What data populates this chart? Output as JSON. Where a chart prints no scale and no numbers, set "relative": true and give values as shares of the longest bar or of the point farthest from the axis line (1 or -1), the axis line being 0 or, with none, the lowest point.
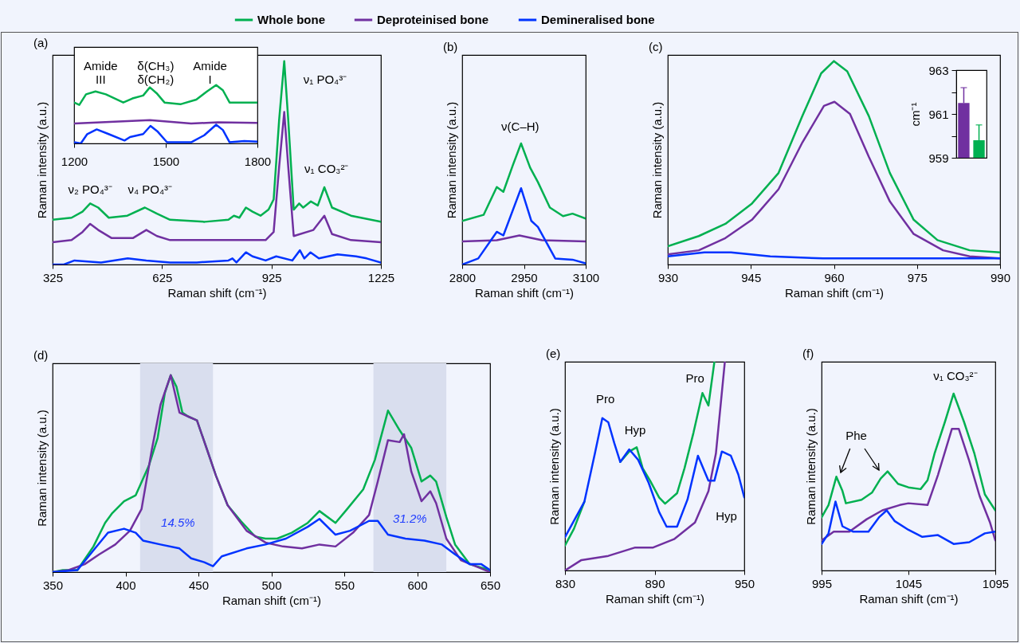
{
  "chart_data": [
    {
      "type": "line",
      "title": "(a)",
      "xlabel": "Raman shift (cm⁻¹)",
      "ylabel": "Raman intensity (a.u.)",
      "relative": true,
      "xlim": [
        325,
        1225
      ],
      "xticks": [
        325,
        625,
        925,
        1225
      ],
      "legend": "top",
      "series": [
        {
          "name": "Whole bone",
          "color": "#00b050",
          "x": [
            325,
            377,
            407,
            428,
            450,
            479,
            530,
            578,
            611,
            647,
            742,
            807,
            822,
            837,
            855,
            873,
            895,
            917,
            931,
            946,
            960,
            971,
            986,
            1001,
            1012,
            1033,
            1052,
            1070,
            1091,
            1143,
            1225
          ],
          "values": [
            0.22,
            0.23,
            0.26,
            0.3,
            0.28,
            0.23,
            0.24,
            0.28,
            0.25,
            0.22,
            0.21,
            0.22,
            0.24,
            0.23,
            0.28,
            0.26,
            0.24,
            0.27,
            0.32,
            0.71,
            1,
            0.71,
            0.27,
            0.3,
            0.28,
            0.31,
            0.29,
            0.38,
            0.28,
            0.24,
            0.21
          ]
        },
        {
          "name": "Deproteinised bone",
          "color": "#7030a0",
          "x": [
            325,
            377,
            407,
            428,
            450,
            487,
            545,
            582,
            611,
            647,
            778,
            909,
            931,
            946,
            960,
            971,
            986,
            1040,
            1070,
            1091,
            1143,
            1225
          ],
          "values": [
            0.11,
            0.12,
            0.16,
            0.2,
            0.17,
            0.13,
            0.13,
            0.17,
            0.14,
            0.12,
            0.12,
            0.12,
            0.16,
            0.48,
            0.75,
            0.48,
            0.14,
            0.17,
            0.24,
            0.15,
            0.12,
            0.11
          ]
        },
        {
          "name": "Demineralised bone",
          "color": "#0033ff",
          "x": [
            325,
            356,
            385,
            458,
            531,
            582,
            647,
            720,
            807,
            818,
            829,
            855,
            873,
            909,
            938,
            982,
            1003,
            1015,
            1032,
            1055,
            1106,
            1157,
            1186,
            1225
          ],
          "values": [
            0,
            0,
            0.02,
            0.01,
            0.03,
            0.02,
            0.01,
            0.01,
            0.02,
            0.03,
            0.01,
            0.06,
            0.04,
            0.02,
            0.04,
            0.02,
            0.07,
            0.03,
            0.06,
            0.03,
            0.05,
            0.04,
            0.03,
            0.01
          ]
        }
      ],
      "annotations": [
        "ν₂ PO₄³⁻",
        "ν₄ PO₄³⁻",
        "ν₁ PO₄³⁻",
        "ν₁ CO₃²⁻"
      ]
    },
    {
      "type": "line",
      "relative": true,
      "xlim": [
        1200,
        1800
      ],
      "xticks": [
        1200,
        1500,
        1800
      ],
      "series": [
        {
          "color": "#00b050",
          "x": [
            1200,
            1217,
            1239,
            1270,
            1304,
            1361,
            1391,
            1426,
            1448,
            1470,
            1496,
            1548,
            1600,
            1635,
            1665,
            1687,
            1709,
            1800
          ],
          "values": [
            0.7,
            0.66,
            0.84,
            0.89,
            0.84,
            0.7,
            0.77,
            0.82,
            0.96,
            0.86,
            0.7,
            0.67,
            0.75,
            0.89,
            1,
            0.91,
            0.7,
            0.7
          ]
        },
        {
          "color": "#7030a0",
          "x": [
            1200,
            1448,
            1583,
            1670,
            1800
          ],
          "values": [
            0.34,
            0.4,
            0.34,
            0.36,
            0.35
          ]
        },
        {
          "color": "#0033ff",
          "x": [
            1200,
            1222,
            1243,
            1274,
            1313,
            1365,
            1383,
            1426,
            1450,
            1474,
            1504,
            1583,
            1626,
            1665,
            1687,
            1709,
            1757,
            1800
          ],
          "values": [
            0.02,
            0,
            0.16,
            0.24,
            0.16,
            0.05,
            0.11,
            0.16,
            0.3,
            0.2,
            0.02,
            0.02,
            0.14,
            0.32,
            0.23,
            0.02,
            0.04,
            0.03
          ]
        }
      ],
      "annotations": [
        "Amide III",
        "δ(CH₃) δ(CH₂)",
        "Amide I"
      ]
    },
    {
      "type": "line",
      "title": "(b)",
      "xlabel": "Raman shift (cm⁻¹)",
      "ylabel": "Raman intensity (a.u.)",
      "relative": true,
      "xlim": [
        2800,
        3100
      ],
      "xticks": [
        2800,
        2950,
        3100
      ],
      "series": [
        {
          "color": "#00b050",
          "x": [
            2800,
            2852,
            2884,
            2900,
            2923,
            2943,
            2965,
            2984,
            3013,
            3045,
            3068,
            3100
          ],
          "values": [
            0.36,
            0.41,
            0.64,
            0.6,
            0.82,
            1,
            0.8,
            0.68,
            0.47,
            0.4,
            0.42,
            0.38
          ]
        },
        {
          "color": "#7030a0",
          "x": [
            2800,
            2884,
            2939,
            2994,
            3100
          ],
          "values": [
            0.19,
            0.2,
            0.24,
            0.2,
            0.19
          ]
        },
        {
          "color": "#0033ff",
          "x": [
            2800,
            2839,
            2884,
            2900,
            2943,
            2968,
            2984,
            3026,
            3068,
            3100
          ],
          "values": [
            0,
            0.05,
            0.27,
            0.24,
            0.63,
            0.36,
            0.31,
            0.05,
            0.04,
            0.01
          ]
        }
      ],
      "annotations": [
        "ν(C–H)"
      ]
    },
    {
      "type": "line",
      "title": "(c)",
      "xlabel": "Raman shift (cm⁻¹)",
      "ylabel": "Raman intensity (a.u.)",
      "relative": true,
      "xlim": [
        930,
        990
      ],
      "xticks": [
        930,
        945,
        960,
        975,
        990
      ],
      "series": [
        {
          "color": "#00b050",
          "x": [
            930,
            935.6,
            940.4,
            945.2,
            950,
            954.3,
            957.7,
            960,
            962.4,
            966.3,
            970.1,
            974.4,
            978.7,
            984.5,
            990
          ],
          "values": [
            0.09,
            0.14,
            0.2,
            0.3,
            0.45,
            0.73,
            0.94,
            1,
            0.95,
            0.73,
            0.45,
            0.22,
            0.12,
            0.07,
            0.06
          ]
        },
        {
          "color": "#7030a0",
          "x": [
            930,
            935.6,
            940.4,
            945.2,
            950,
            954.3,
            958.2,
            960.1,
            962.9,
            966.3,
            970.1,
            974.4,
            979.7,
            984.5,
            990
          ],
          "values": [
            0.05,
            0.07,
            0.13,
            0.22,
            0.37,
            0.6,
            0.78,
            0.8,
            0.74,
            0.53,
            0.31,
            0.15,
            0.07,
            0.04,
            0.03
          ]
        },
        {
          "color": "#0033ff",
          "x": [
            930,
            936.6,
            941.4,
            948.5,
            958,
            972.5,
            990
          ],
          "values": [
            0.04,
            0.06,
            0.06,
            0.04,
            0.03,
            0.03,
            0.03
          ]
        }
      ]
    },
    {
      "type": "bar",
      "ylabel": "cm⁻¹",
      "categories": [
        null,
        null
      ],
      "values": [
        961.5,
        959.8
      ],
      "colors": [
        "#7030a0",
        "#00b050"
      ],
      "errors": [
        [
          961.5,
          962.2
        ],
        [
          959.8,
          960.5
        ]
      ],
      "ylim": [
        959,
        963
      ],
      "yticks": [
        959,
        {
          "value": 960,
          "label": null
        },
        961,
        {
          "value": 962,
          "label": null
        },
        963
      ]
    },
    {
      "type": "line",
      "title": "(d)",
      "xlabel": "Raman shift (cm⁻¹)",
      "ylabel": "Raman intensity (a.u.)",
      "relative": true,
      "xlim": [
        350,
        650
      ],
      "xticks": [
        350,
        400,
        450,
        500,
        550,
        600,
        650
      ],
      "bands": [
        {
          "axis": "x",
          "from": 410,
          "to": 460,
          "color": "#d9deee"
        },
        {
          "axis": "x",
          "from": 570,
          "to": 620,
          "color": "#d9deee"
        }
      ],
      "series": [
        {
          "color": "#00b050",
          "x": [
            350,
            357,
            367,
            378,
            386,
            391,
            399,
            407,
            416,
            422,
            427,
            431,
            435,
            439,
            443,
            449,
            456,
            462,
            470,
            479,
            489,
            496,
            504,
            514,
            525,
            533,
            544,
            552,
            563,
            571,
            580,
            588,
            596,
            603,
            609,
            613,
            620,
            626,
            636,
            650
          ],
          "values": [
            0,
            0.01,
            0.01,
            0.13,
            0.25,
            0.3,
            0.36,
            0.39,
            0.54,
            0.68,
            0.91,
            1,
            0.94,
            0.81,
            0.79,
            0.77,
            0.62,
            0.49,
            0.34,
            0.26,
            0.18,
            0.17,
            0.17,
            0.2,
            0.25,
            0.31,
            0.25,
            0.32,
            0.42,
            0.57,
            0.82,
            0.72,
            0.63,
            0.46,
            0.49,
            0.46,
            0.28,
            0.14,
            0.04,
            0.01
          ]
        },
        {
          "color": "#7030a0",
          "x": [
            350,
            361,
            372,
            382,
            393,
            403,
            411,
            418,
            424,
            431,
            437,
            443,
            449,
            456,
            462,
            470,
            483,
            496,
            508,
            521,
            533,
            544,
            556,
            567,
            573,
            580,
            588,
            591,
            596,
            603,
            609,
            613,
            620,
            630,
            650
          ],
          "values": [
            0,
            0.01,
            0.04,
            0.09,
            0.14,
            0.21,
            0.32,
            0.62,
            0.85,
            1,
            0.81,
            0.79,
            0.77,
            0.62,
            0.49,
            0.34,
            0.21,
            0.15,
            0.13,
            0.12,
            0.14,
            0.13,
            0.2,
            0.29,
            0.46,
            0.67,
            0.66,
            0.7,
            0.51,
            0.36,
            0.41,
            0.35,
            0.17,
            0.06,
            0
          ]
        },
        {
          "color": "#0033ff",
          "x": [
            350,
            367,
            378,
            388,
            399,
            407,
            412,
            424,
            437,
            445,
            454,
            460,
            466,
            483,
            496,
            510,
            525,
            533,
            544,
            554,
            567,
            573,
            580,
            592,
            605,
            617,
            626,
            636,
            644,
            650
          ],
          "values": [
            0,
            0.01,
            0.11,
            0.2,
            0.22,
            0.2,
            0.16,
            0.14,
            0.12,
            0.07,
            0.05,
            0.03,
            0.08,
            0.12,
            0.14,
            0.17,
            0.23,
            0.27,
            0.19,
            0.21,
            0.26,
            0.26,
            0.19,
            0.17,
            0.16,
            0.14,
            0.09,
            0.04,
            0.04,
            0.01
          ]
        }
      ],
      "annotations": [
        "14.5%",
        "31.2%"
      ]
    },
    {
      "type": "line",
      "title": "(e)",
      "xlabel": "Raman shift (cm⁻¹)",
      "ylabel": "Raman intensity (a.u.)",
      "relative": true,
      "xlim": [
        830,
        950
      ],
      "xticks": [
        830,
        890,
        950
      ],
      "series": [
        {
          "color": "#00b050",
          "x": [
            830,
            836,
            843,
            850,
            855,
            859,
            863,
            867,
            873,
            878,
            882,
            887,
            893,
            897,
            905,
            910,
            916,
            922,
            926,
            930
          ],
          "values": [
            0.12,
            0.2,
            0.33,
            null,
            null,
            null,
            null,
            0.52,
            0.57,
            0.59,
            0.49,
            0.43,
            0.35,
            0.32,
            0.37,
            0.49,
            0.66,
            0.85,
            0.79,
            1
          ]
        },
        {
          "color": "#7030a0",
          "x": [
            830,
            841,
            859,
            877,
            889,
            903,
            917,
            926,
            931,
            937
          ],
          "values": [
            0,
            0.05,
            0.07,
            0.11,
            0.11,
            0.15,
            0.23,
            0.38,
            0.56,
            1
          ]
        },
        {
          "color": "#0033ff",
          "x": [
            830,
            843,
            850,
            855,
            859,
            863,
            867,
            873,
            879,
            886,
            893,
            898,
            905,
            912,
            919,
            926,
            930,
            935,
            941,
            946,
            950
          ],
          "values": [
            0.16,
            0.33,
            0.56,
            0.73,
            0.71,
            0.61,
            0.52,
            0.58,
            0.53,
            0.42,
            0.28,
            0.21,
            0.21,
            0.34,
            0.55,
            0.43,
            0.43,
            0.57,
            0.55,
            0.46,
            0.35
          ]
        }
      ],
      "annotations": [
        "Pro",
        "Hyp",
        "Pro",
        "Hyp"
      ]
    },
    {
      "type": "line",
      "title": "(f)",
      "xlabel": "Raman shift (cm⁻¹)",
      "ylabel": "Raman intensity (a.u.)",
      "relative": true,
      "xlim": [
        995,
        1095
      ],
      "xticks": [
        995,
        1045,
        1095
      ],
      "series": [
        {
          "color": "#00b050",
          "x": [
            995,
            999,
            1003.5,
            1007,
            1009,
            1018,
            1024,
            1029,
            1033,
            1039,
            1045,
            1052,
            1056,
            1060,
            1066,
            1071,
            1077,
            1083,
            1089,
            1095
          ],
          "values": [
            0.3,
            0.37,
            0.53,
            0.45,
            0.38,
            0.4,
            0.44,
            0.52,
            0.56,
            0.49,
            0.47,
            0.46,
            0.51,
            0.66,
            0.84,
            1,
            0.84,
            0.66,
            0.43,
            0.34
          ]
        },
        {
          "color": "#7030a0",
          "x": [
            995,
            1002,
            1011,
            1021,
            1030,
            1040,
            1045,
            1056,
            1062,
            1070,
            1074,
            1080,
            1086,
            1092,
            1095
          ],
          "values": [
            0.17,
            0.22,
            0.22,
            0.29,
            0.34,
            0.37,
            0.38,
            0.37,
            0.54,
            0.8,
            0.8,
            0.62,
            0.42,
            0.27,
            0.17
          ]
        },
        {
          "color": "#0033ff",
          "x": [
            995,
            999,
            1003,
            1007,
            1013,
            1022,
            1028,
            1032.5,
            1037,
            1045,
            1053,
            1062,
            1071,
            1080,
            1089,
            1095
          ],
          "values": [
            0.15,
            0.21,
            0.39,
            0.25,
            0.22,
            0.22,
            0.3,
            0.34,
            0.28,
            0.23,
            0.19,
            0.2,
            0.15,
            0.16,
            0.21,
            0.22
          ]
        }
      ],
      "annotations": [
        "Phe",
        "ν₁ CO₃²⁻"
      ]
    }
  ]
}
